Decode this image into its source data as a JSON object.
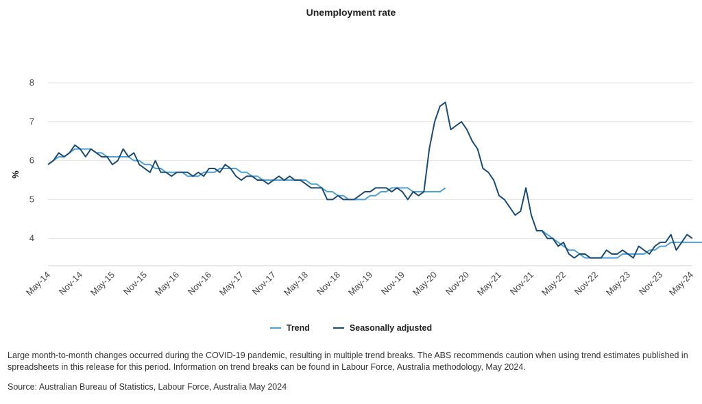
{
  "chart_data": {
    "type": "line",
    "title": "Unemployment rate",
    "xlabel": "",
    "ylabel": "%",
    "ylim": [
      3.3,
      8
    ],
    "yticks": [
      4,
      5,
      6,
      7,
      8
    ],
    "grid": true,
    "legend_position": "bottom",
    "x_start": "May-14",
    "x_ticks": [
      "May-14",
      "Nov-14",
      "May-15",
      "Nov-15",
      "May-16",
      "Nov-16",
      "May-17",
      "Nov-17",
      "May-18",
      "Nov-18",
      "May-19",
      "Nov-19",
      "May-20",
      "Nov-20",
      "May-21",
      "Nov-21",
      "May-22",
      "Nov-22",
      "May-23",
      "Nov-23",
      "May-24"
    ],
    "series": [
      {
        "name": "Trend",
        "color": "#4e9fd6",
        "values": [
          5.9,
          6.0,
          6.1,
          6.1,
          6.2,
          6.3,
          6.3,
          6.3,
          6.3,
          6.2,
          6.2,
          6.1,
          6.1,
          6.1,
          6.1,
          6.1,
          6.0,
          6.0,
          5.9,
          5.9,
          5.8,
          5.8,
          5.7,
          5.7,
          5.7,
          5.7,
          5.6,
          5.6,
          5.6,
          5.7,
          5.7,
          5.7,
          5.8,
          5.8,
          5.8,
          5.8,
          5.7,
          5.7,
          5.6,
          5.6,
          5.5,
          5.5,
          5.5,
          5.5,
          5.5,
          5.5,
          5.5,
          5.5,
          5.5,
          5.4,
          5.4,
          5.3,
          5.2,
          5.2,
          5.1,
          5.1,
          5.0,
          5.0,
          5.0,
          5.0,
          5.1,
          5.1,
          5.2,
          5.2,
          5.3,
          5.3,
          5.3,
          5.3,
          5.2,
          5.2,
          5.2,
          5.2,
          5.2,
          5.2,
          5.3
        ]
      },
      {
        "name": "Seasonally adjusted",
        "color": "#1b4a72",
        "values": [
          5.9,
          6.0,
          6.2,
          6.1,
          6.2,
          6.4,
          6.3,
          6.1,
          6.3,
          6.2,
          6.1,
          6.1,
          5.9,
          6.0,
          6.3,
          6.1,
          6.2,
          5.9,
          5.8,
          5.7,
          6.0,
          5.7,
          5.7,
          5.6,
          5.7,
          5.7,
          5.7,
          5.6,
          5.7,
          5.6,
          5.8,
          5.8,
          5.7,
          5.9,
          5.8,
          5.6,
          5.5,
          5.6,
          5.6,
          5.5,
          5.5,
          5.4,
          5.5,
          5.6,
          5.5,
          5.6,
          5.5,
          5.5,
          5.4,
          5.3,
          5.3,
          5.3,
          5.0,
          5.0,
          5.1,
          5.0,
          5.0,
          5.0,
          5.1,
          5.2,
          5.2,
          5.3,
          5.3,
          5.3,
          5.2,
          5.3,
          5.2,
          5.0,
          5.2,
          5.1,
          5.2,
          6.3,
          7.0,
          7.4,
          7.5,
          6.8,
          6.9,
          7.0,
          6.8,
          6.5,
          6.3,
          5.8,
          5.7,
          5.5,
          5.1,
          5.0,
          4.8,
          4.6,
          4.7,
          5.3,
          4.6,
          4.2,
          4.2,
          4.0,
          4.0,
          3.8,
          3.9,
          3.6,
          3.5,
          3.6,
          3.6,
          3.5,
          3.5,
          3.5,
          3.7,
          3.6,
          3.6,
          3.7,
          3.6,
          3.5,
          3.8,
          3.7,
          3.6,
          3.8,
          3.9,
          3.9,
          4.1,
          3.7,
          3.9,
          4.1,
          4.0
        ]
      },
      {
        "name": "Trend",
        "color": "#4e9fd6",
        "values": [
          4.2,
          4.2,
          4.1,
          4.0,
          3.9,
          3.8,
          3.7,
          3.7,
          3.6,
          3.5,
          3.5,
          3.5,
          3.5,
          3.5,
          3.5,
          3.5,
          3.6,
          3.6,
          3.6,
          3.6,
          3.6,
          3.7,
          3.7,
          3.8,
          3.8,
          3.9,
          3.9,
          3.9,
          3.9,
          3.9,
          3.9,
          3.9,
          4.0
        ],
        "start_index": 91,
        "note_hidden_name": true
      }
    ]
  },
  "legend": [
    {
      "label": "Trend",
      "color": "#4e9fd6"
    },
    {
      "label": "Seasonally adjusted",
      "color": "#1b4a72"
    }
  ],
  "footnote": "Large month-to-month changes occurred during the COVID-19 pandemic, resulting in multiple trend breaks. The ABS recommends caution when using trend estimates published in spreadsheets in this release for this period. Information on trend breaks can be found in Labour Force, Australia methodology, May 2024.",
  "source": "Source: Australian Bureau of Statistics, Labour Force, Australia May 2024"
}
